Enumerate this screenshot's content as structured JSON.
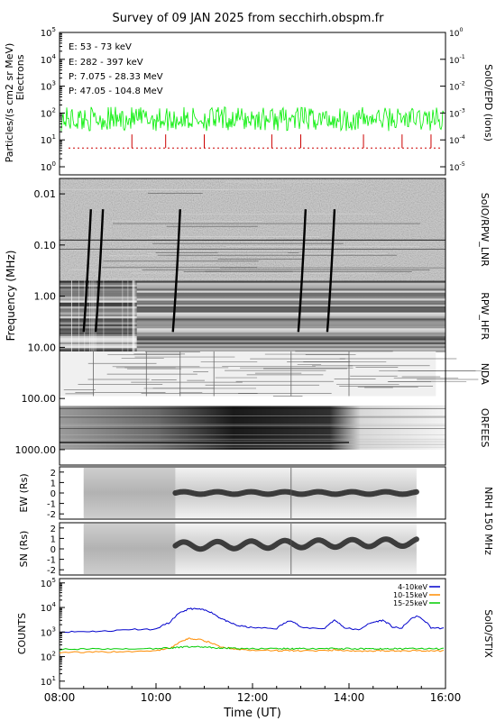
{
  "title": "Survey of 09 JAN 2025 from secchirh.obspm.fr",
  "chart_data": [
    {
      "panel": "SolO/EPD",
      "type": "line",
      "right_label": "SolO/EPD (ions)",
      "ylabel": "Particles/(s cm2 sr MeV)",
      "ylabel2": "Electrons",
      "y_scale": "log",
      "ylim": [
        0.5,
        100000
      ],
      "y_ticks": [
        "10^0",
        "10^1",
        "10^2",
        "10^3",
        "10^4",
        "10^5"
      ],
      "right_scale": "log",
      "right_lim": [
        5e-06,
        1
      ],
      "right_ticks": [
        "10^-5",
        "10^-4",
        "10^-3",
        "10^-2",
        "10^-1",
        "10^0"
      ],
      "legend_placement": "top-left",
      "series": [
        {
          "name": "E: 53 - 73 keV",
          "color": "#00ee00",
          "baseline": 60,
          "range": [
            20,
            200
          ]
        },
        {
          "name": "E: 282 - 397 keV",
          "color": "#cc0000",
          "baseline": 5,
          "spikes": [
            9.5,
            10.2,
            11.0,
            12.4,
            13.0,
            14.3,
            15.1,
            15.7
          ]
        },
        {
          "name": "P: 7.075 - 28.33 MeV",
          "color": "#000000"
        },
        {
          "name": "P: 47.05 - 104.8 MeV",
          "color": "#0000cc"
        }
      ]
    },
    {
      "panel": "Radio spectrogram",
      "type": "heatmap",
      "ylabel": "Frequency (MHz)",
      "y_scale": "log",
      "ylim": [
        0.005,
        2000
      ],
      "y_ticks": [
        "0.01",
        "0.10",
        "1.00",
        "10.00",
        "100.00",
        "1000.00"
      ],
      "instruments": [
        {
          "label": "SoIO/RPW_LNR",
          "range_mhz": [
            0.005,
            0.5
          ]
        },
        {
          "label": "RPW_HFR",
          "range_mhz": [
            0.5,
            12
          ]
        },
        {
          "label": "NDA",
          "range_mhz": [
            12,
            90
          ]
        },
        {
          "label": "ORFEES",
          "range_mhz": [
            140,
            1000
          ]
        }
      ],
      "type_iii_bursts_ut": [
        8.65,
        8.9,
        10.5,
        13.1,
        13.7
      ]
    },
    {
      "panel": "NRH 150 MHz EW",
      "type": "heatmap",
      "right_label": "NRH 150 MHz",
      "ylabel": "EW (Rs)",
      "ylim": [
        -2.5,
        2.5
      ],
      "y_ticks": [
        "2",
        "1",
        "0",
        "-1",
        "-2"
      ],
      "data_span_ut": [
        8.5,
        15.4
      ],
      "emission_center_rs": 0
    },
    {
      "panel": "NRH 150 MHz SN",
      "type": "heatmap",
      "ylabel": "SN (Rs)",
      "ylim": [
        -2.5,
        2.5
      ],
      "y_ticks": [
        "2",
        "1",
        "0",
        "-1",
        "-2"
      ],
      "data_span_ut": [
        8.5,
        15.4
      ],
      "emission_center_rs": 0.4
    },
    {
      "panel": "SolO/STIX",
      "type": "line",
      "right_label": "SolO/STIX",
      "ylabel": "COUNTS",
      "y_scale": "log",
      "ylim": [
        5,
        150000
      ],
      "y_ticks": [
        "10^1",
        "10^2",
        "10^3",
        "10^4",
        "10^5"
      ],
      "legend_placement": "top-right",
      "x": [
        8.0,
        8.5,
        9.0,
        9.5,
        10.0,
        10.3,
        10.5,
        10.7,
        10.9,
        11.1,
        11.3,
        11.5,
        11.7,
        12.0,
        12.5,
        12.8,
        13.0,
        13.5,
        13.7,
        13.9,
        14.2,
        14.5,
        14.7,
        14.9,
        15.1,
        15.4,
        15.7,
        16.0
      ],
      "series": [
        {
          "name": "4-10keV",
          "color": "#0000cc",
          "values": [
            1000,
            1050,
            1100,
            1300,
            1300,
            2500,
            6000,
            9000,
            8500,
            7000,
            4000,
            2500,
            1800,
            1500,
            1400,
            3000,
            1500,
            1400,
            3000,
            1500,
            1200,
            2500,
            3000,
            1600,
            1400,
            4500,
            1500,
            1400
          ]
        },
        {
          "name": "10-15keV",
          "color": "#ff8c00",
          "values": [
            150,
            150,
            155,
            160,
            170,
            220,
            380,
            550,
            500,
            380,
            260,
            220,
            200,
            180,
            175,
            175,
            170,
            170,
            190,
            175,
            170,
            170,
            175,
            170,
            170,
            175,
            170,
            170
          ]
        },
        {
          "name": "15-25keV",
          "color": "#00cc00",
          "values": [
            200,
            200,
            205,
            210,
            215,
            225,
            240,
            250,
            245,
            235,
            225,
            220,
            215,
            210,
            210,
            210,
            210,
            210,
            215,
            210,
            210,
            210,
            210,
            210,
            210,
            210,
            210,
            210
          ]
        }
      ]
    }
  ],
  "x_axis": {
    "label": "Time (UT)",
    "range_ut": [
      8,
      16
    ],
    "ticks": [
      "08:00",
      "10:00",
      "12:00",
      "14:00",
      "16:00"
    ]
  }
}
